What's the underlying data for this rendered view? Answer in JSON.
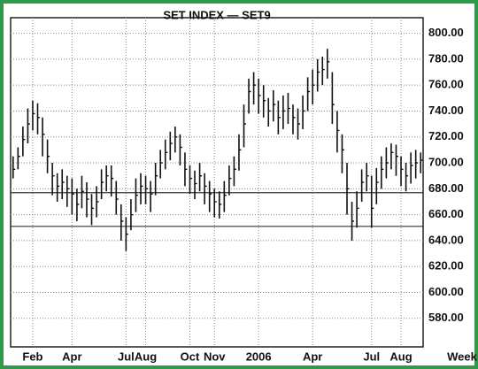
{
  "chart_data": {
    "type": "hlc",
    "title": "SET INDEX — SET9",
    "x_label": "Week",
    "categories": [
      null,
      null,
      null,
      null,
      "Feb",
      null,
      null,
      null,
      null,
      null,
      null,
      null,
      "Apr",
      null,
      null,
      null,
      null,
      null,
      null,
      null,
      null,
      null,
      null,
      "Jul",
      null,
      null,
      null,
      "Aug",
      null,
      null,
      null,
      null,
      null,
      null,
      null,
      null,
      "Oct",
      null,
      null,
      null,
      null,
      "Nov",
      null,
      null,
      null,
      null,
      null,
      null,
      null,
      null,
      "2006",
      null,
      null,
      null,
      null,
      null,
      null,
      null,
      null,
      null,
      null,
      "Apr",
      null,
      null,
      null,
      null,
      null,
      null,
      null,
      null,
      null,
      null,
      null,
      "Jul",
      null,
      null,
      null,
      null,
      null,
      "Aug",
      null,
      null,
      null,
      null
    ],
    "high": [
      705,
      712,
      728,
      742,
      748,
      746,
      735,
      718,
      700,
      692,
      695,
      690,
      688,
      680,
      690,
      685,
      676,
      682,
      695,
      698,
      698,
      686,
      668,
      658,
      672,
      688,
      692,
      690,
      686,
      700,
      710,
      718,
      724,
      728,
      722,
      708,
      698,
      694,
      700,
      692,
      686,
      680,
      678,
      686,
      698,
      705,
      722,
      745,
      765,
      770,
      765,
      760,
      750,
      756,
      748,
      752,
      754,
      745,
      742,
      752,
      766,
      772,
      780,
      782,
      788,
      770,
      740,
      722,
      700,
      670,
      678,
      695,
      700,
      690,
      696,
      705,
      712,
      715,
      714,
      705,
      700,
      708,
      710,
      708
    ],
    "low": [
      688,
      695,
      705,
      715,
      725,
      722,
      705,
      692,
      675,
      670,
      672,
      666,
      660,
      655,
      665,
      658,
      652,
      658,
      672,
      678,
      674,
      660,
      640,
      632,
      648,
      662,
      668,
      668,
      662,
      675,
      688,
      695,
      702,
      708,
      698,
      682,
      676,
      672,
      678,
      668,
      662,
      658,
      657,
      662,
      675,
      682,
      694,
      712,
      738,
      745,
      738,
      735,
      728,
      732,
      722,
      726,
      730,
      722,
      718,
      726,
      740,
      745,
      755,
      760,
      765,
      730,
      708,
      692,
      660,
      640,
      650,
      670,
      678,
      650,
      668,
      680,
      688,
      695,
      690,
      682,
      678,
      684,
      688,
      692
    ],
    "close": [
      695,
      705,
      718,
      730,
      738,
      735,
      722,
      705,
      690,
      682,
      685,
      680,
      676,
      668,
      678,
      672,
      665,
      670,
      685,
      690,
      688,
      672,
      655,
      645,
      660,
      675,
      682,
      680,
      676,
      690,
      700,
      708,
      715,
      720,
      712,
      695,
      688,
      684,
      690,
      682,
      676,
      670,
      668,
      675,
      688,
      695,
      710,
      730,
      755,
      760,
      752,
      748,
      740,
      745,
      735,
      740,
      742,
      735,
      730,
      740,
      755,
      760,
      770,
      772,
      778,
      745,
      725,
      710,
      680,
      655,
      665,
      685,
      690,
      665,
      685,
      695,
      700,
      708,
      705,
      695,
      690,
      698,
      700,
      702
    ],
    "color": "#111111",
    "hlines": [
      677,
      651
    ],
    "ylim": [
      558,
      812
    ],
    "yticks": [
      {
        "value": 580,
        "label": "580.00"
      },
      {
        "value": 600,
        "label": "600.00"
      },
      {
        "value": 620,
        "label": "620.00"
      },
      {
        "value": 640,
        "label": "640.00"
      },
      {
        "value": 660,
        "label": "660.00"
      },
      {
        "value": 680,
        "label": "680.00"
      },
      {
        "value": 700,
        "label": "700.00"
      },
      {
        "value": 720,
        "label": "720.00"
      },
      {
        "value": 740,
        "label": "740.00"
      },
      {
        "value": 760,
        "label": "760.00"
      },
      {
        "value": 780,
        "label": "780.00"
      },
      {
        "value": 800,
        "label": "800.00"
      }
    ],
    "grid": true
  }
}
